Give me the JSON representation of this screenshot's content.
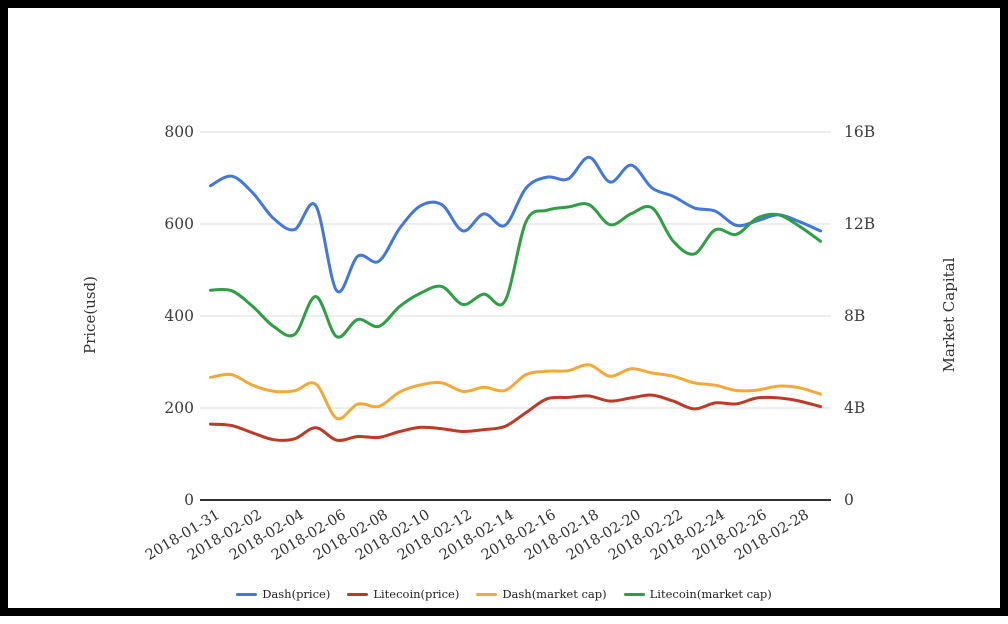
{
  "chart_data": {
    "type": "line",
    "smooth": true,
    "grid": true,
    "legend_position": "bottom",
    "x": [
      "2018-01-31",
      "2018-02-01",
      "2018-02-02",
      "2018-02-03",
      "2018-02-04",
      "2018-02-05",
      "2018-02-06",
      "2018-02-07",
      "2018-02-08",
      "2018-02-09",
      "2018-02-10",
      "2018-02-11",
      "2018-02-12",
      "2018-02-13",
      "2018-02-14",
      "2018-02-15",
      "2018-02-16",
      "2018-02-17",
      "2018-02-18",
      "2018-02-19",
      "2018-02-20",
      "2018-02-21",
      "2018-02-22",
      "2018-02-23",
      "2018-02-24",
      "2018-02-25",
      "2018-02-26",
      "2018-02-27",
      "2018-02-28",
      "2018-03-01"
    ],
    "x_tick_labels": [
      "2018-01-31",
      "2018-02-02",
      "2018-02-04",
      "2018-02-06",
      "2018-02-08",
      "2018-02-10",
      "2018-02-12",
      "2018-02-14",
      "2018-02-16",
      "2018-02-18",
      "2018-02-20",
      "2018-02-22",
      "2018-02-24",
      "2018-02-26",
      "2018-02-28"
    ],
    "left_axis": {
      "label": "Price(usd)",
      "min": 0,
      "max": 800,
      "tick_values": [
        0,
        200,
        400,
        600,
        800
      ],
      "tick_labels": [
        "0",
        "200",
        "400",
        "600",
        "800"
      ]
    },
    "right_axis": {
      "label": "Market Capital",
      "min": 0,
      "max": 16,
      "tick_values": [
        0,
        4,
        8,
        12,
        16
      ],
      "tick_labels": [
        "0",
        "4B",
        "8B",
        "12B",
        "16B"
      ]
    },
    "series": [
      {
        "name": "Dash(price)",
        "axis": "left",
        "color": "#4377d9",
        "values": [
          683,
          704,
          668,
          612,
          588,
          640,
          455,
          530,
          519,
          591,
          640,
          642,
          585,
          622,
          597,
          678,
          702,
          698,
          745,
          691,
          728,
          678,
          660,
          635,
          628,
          597,
          607,
          620,
          605,
          585
        ]
      },
      {
        "name": "Litecoin(price)",
        "axis": "left",
        "color": "#bd3a26",
        "values": [
          165,
          162,
          146,
          131,
          133,
          157,
          130,
          138,
          136,
          149,
          158,
          155,
          149,
          153,
          160,
          190,
          220,
          223,
          226,
          215,
          222,
          228,
          215,
          198,
          211,
          209,
          222,
          222,
          215,
          203
        ]
      },
      {
        "name": "Dash(market cap)",
        "axis": "right",
        "color": "#f3a93a",
        "values": [
          5.33,
          5.45,
          4.99,
          4.73,
          4.75,
          5.05,
          3.55,
          4.17,
          4.07,
          4.7,
          5.01,
          5.09,
          4.72,
          4.9,
          4.76,
          5.45,
          5.6,
          5.62,
          5.88,
          5.38,
          5.71,
          5.52,
          5.38,
          5.09,
          4.99,
          4.76,
          4.78,
          4.95,
          4.88,
          4.6
        ]
      },
      {
        "name": "Litecoin(market cap)",
        "axis": "right",
        "color": "#2f9e44",
        "values": [
          9.12,
          9.1,
          8.42,
          7.55,
          7.2,
          8.85,
          7.1,
          7.85,
          7.55,
          8.42,
          9.0,
          9.28,
          8.5,
          8.95,
          8.65,
          12.1,
          12.6,
          12.74,
          12.84,
          11.97,
          12.45,
          12.7,
          11.25,
          10.7,
          11.75,
          11.55,
          12.26,
          12.4,
          11.9,
          11.25
        ]
      }
    ]
  },
  "colors": {
    "background": "#ffffff",
    "frame": "#000000",
    "gridline": "#dcdcdc",
    "axis_line": "#333333",
    "tick_text": "#3d3d3d"
  }
}
